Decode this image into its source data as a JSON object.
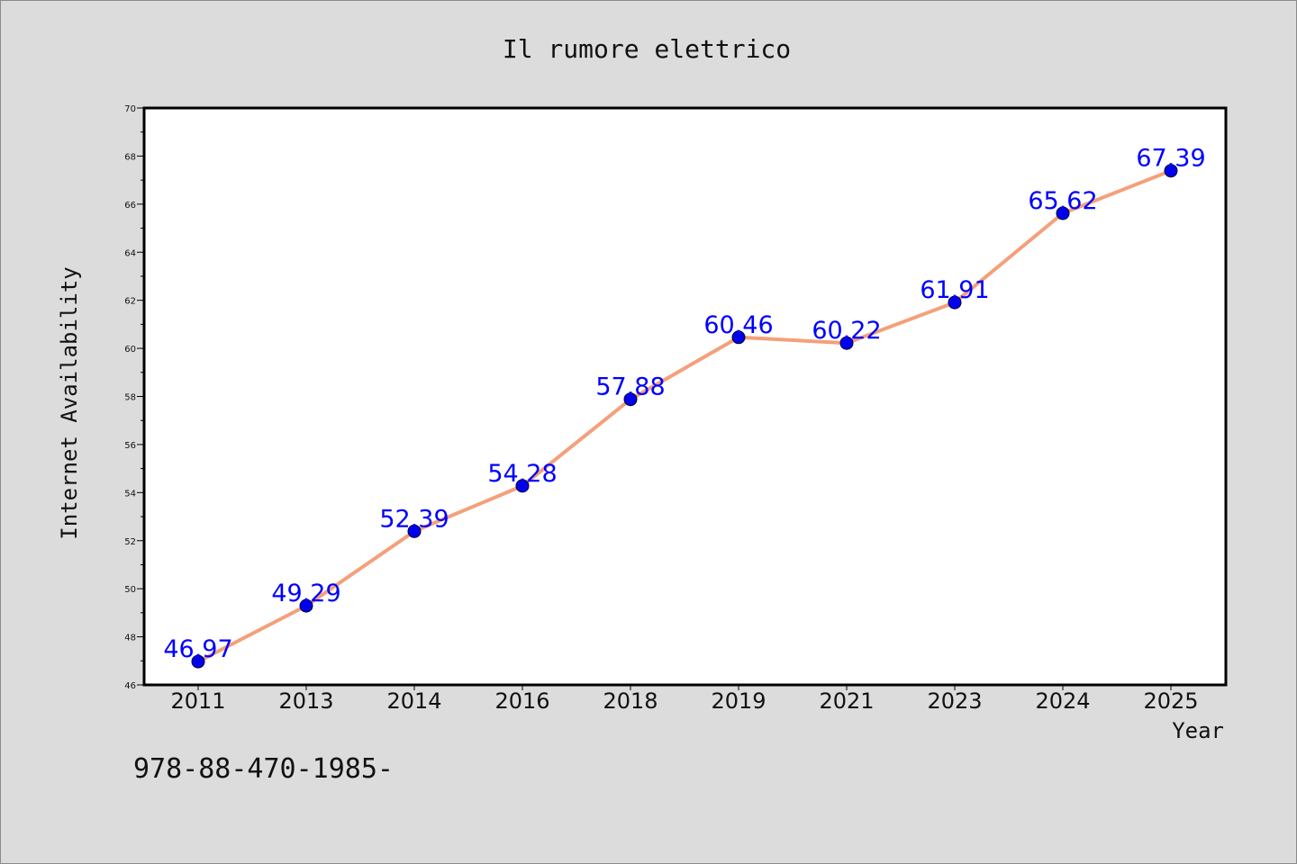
{
  "chart_data": {
    "type": "line",
    "title": "Il rumore elettrico",
    "xlabel": "Year",
    "ylabel": "Internet Availability",
    "categories": [
      "2011",
      "2013",
      "2014",
      "2016",
      "2018",
      "2019",
      "2021",
      "2023",
      "2024",
      "2025"
    ],
    "values": [
      46.97,
      49.29,
      52.39,
      54.28,
      57.88,
      60.46,
      60.22,
      61.91,
      65.62,
      67.39
    ],
    "data_labels": [
      "46.97",
      "49.29",
      "52.39",
      "54.28",
      "57.88",
      "60.46",
      "60.22",
      "61.91",
      "65.62",
      "67.39"
    ],
    "ylim": [
      46,
      70
    ],
    "yticks": [
      46,
      48,
      50,
      52,
      54,
      56,
      58,
      60,
      62,
      64,
      66,
      68,
      70
    ],
    "grid": false,
    "line_color": "#f4a07a",
    "marker_color": "#0000ee",
    "label_color": "#0000ff"
  },
  "footer": {
    "text": "978-88-470-1985-"
  }
}
